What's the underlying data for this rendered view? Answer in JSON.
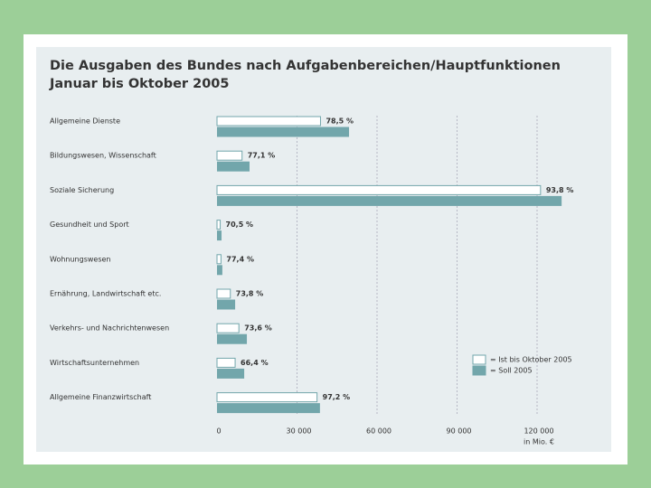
{
  "chart_data": {
    "type": "hbar",
    "title": "Die Ausgaben des Bundes nach Aufgabenbereichen/Hauptfunktionen",
    "subtitle": "Januar bis Oktober 2005",
    "categories": [
      "Allgemeine Dienste",
      "Bildungswesen, Wissenschaft",
      "Soziale Sicherung",
      "Gesundheit und Sport",
      "Wohnungswesen",
      "Ernährung, Landwirtschaft etc.",
      "Verkehrs- und Nachrichtenwesen",
      "Wirtschaftsunternehmen",
      "Allgemeine Finanzwirtschaft"
    ],
    "series": [
      {
        "name": "= Ist bis Oktober 2005",
        "color": "#ffffff",
        "values": [
          38800,
          9400,
          121300,
          1200,
          1500,
          5000,
          8200,
          6800,
          37500
        ]
      },
      {
        "name": "= Soll 2005",
        "color": "#72a6ab",
        "values": [
          49500,
          12200,
          129200,
          1700,
          2000,
          6800,
          11200,
          10200,
          38600
        ]
      }
    ],
    "percent_labels": [
      "78,5 %",
      "77,1 %",
      "93,8 %",
      "70,5 %",
      "77,4 %",
      "73,8 %",
      "73,6 %",
      "66,4 %",
      "97,2 %"
    ],
    "xlim": [
      0,
      130000
    ],
    "xticks": [
      0,
      {
        "value": 30000,
        "label": "30 000"
      },
      {
        "value": 60000,
        "label": "60 000"
      },
      {
        "value": 90000,
        "label": "90 000"
      },
      {
        "value": 120000,
        "label": "120 000"
      }
    ],
    "x_unit": "in Mio. €",
    "grid": true
  }
}
